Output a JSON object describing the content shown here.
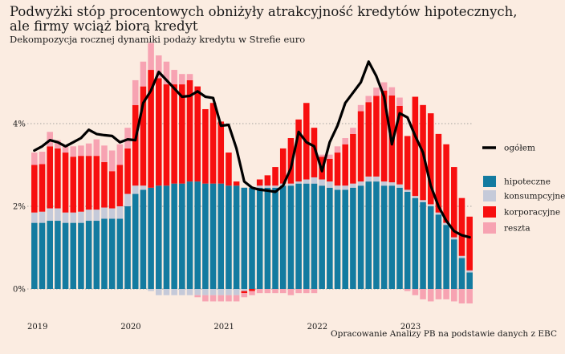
{
  "title_line1": "Podwyżki stóp procentowych obniżyły atrakcyjność kredytów hipotecznych,",
  "title_line2": "ale firmy wciąż biorą kredyt",
  "subtitle": "Dekompozycja rocznej dynamiki podaży kredytu w Strefie euro",
  "source": "Opracowanie Analizy PB na podstawie danych z EBC",
  "chart_data": {
    "type": "bar",
    "stacked": true,
    "unit": "%",
    "ylim": [
      -0.4,
      5.6
    ],
    "yticks": [
      0,
      2,
      4
    ],
    "ytick_labels": [
      "0%",
      "2%",
      "4%"
    ],
    "xtick_labels": [
      {
        "label": "2019",
        "index": 0
      },
      {
        "label": "2020",
        "index": 12
      },
      {
        "label": "2021",
        "index": 24
      },
      {
        "label": "2022",
        "index": 36
      },
      {
        "label": "2023",
        "index": 48
      }
    ],
    "grid": "horizontal dotted",
    "legend_position": "right",
    "colors": {
      "hipoteczne": "#137ba0",
      "konsumpcyjne": "#c5cad9",
      "korporacyjne": "#f70f0f",
      "reszta": "#f7a3b2",
      "ogolem": "#000000"
    },
    "series": [
      {
        "name": "hipoteczne",
        "key": "hipoteczne",
        "values": [
          1.6,
          1.6,
          1.65,
          1.65,
          1.6,
          1.6,
          1.6,
          1.65,
          1.65,
          1.7,
          1.7,
          1.7,
          2.0,
          2.3,
          2.4,
          2.45,
          2.5,
          2.5,
          2.55,
          2.55,
          2.6,
          2.6,
          2.55,
          2.55,
          2.55,
          2.5,
          2.5,
          2.45,
          2.45,
          2.45,
          2.45,
          2.45,
          2.5,
          2.5,
          2.55,
          2.55,
          2.55,
          2.5,
          2.45,
          2.4,
          2.4,
          2.45,
          2.5,
          2.6,
          2.6,
          2.5,
          2.5,
          2.45,
          2.35,
          2.2,
          2.1,
          2.0,
          1.8,
          1.55,
          1.2,
          0.75,
          0.4
        ]
      },
      {
        "name": "konsumpcyjne",
        "key": "konsumpcyjne",
        "values": [
          0.25,
          0.27,
          0.3,
          0.3,
          0.25,
          0.25,
          0.27,
          0.27,
          0.27,
          0.27,
          0.25,
          0.3,
          0.3,
          0.2,
          0.1,
          -0.05,
          -0.15,
          -0.15,
          -0.15,
          -0.15,
          -0.15,
          -0.15,
          -0.15,
          -0.15,
          -0.15,
          -0.15,
          -0.15,
          -0.05,
          0.0,
          0.05,
          0.05,
          0.05,
          0.05,
          0.05,
          0.05,
          0.1,
          0.15,
          0.15,
          0.15,
          0.1,
          0.1,
          0.1,
          0.1,
          0.12,
          0.12,
          0.1,
          0.08,
          0.08,
          0.05,
          0.05,
          0.05,
          0.05,
          0.05,
          0.05,
          0.05,
          0.05,
          0.05
        ]
      },
      {
        "name": "korporacyjne",
        "key": "korporacyjne",
        "values": [
          1.15,
          1.15,
          1.5,
          1.45,
          1.45,
          1.35,
          1.35,
          1.3,
          1.3,
          1.1,
          0.9,
          1.0,
          1.1,
          1.95,
          2.4,
          2.85,
          2.6,
          2.45,
          2.4,
          2.4,
          2.45,
          2.3,
          1.8,
          1.95,
          1.5,
          0.8,
          0.1,
          -0.05,
          -0.05,
          0.15,
          0.25,
          0.45,
          0.85,
          1.1,
          1.5,
          1.85,
          1.2,
          0.55,
          0.55,
          0.8,
          1.0,
          1.2,
          1.7,
          1.8,
          1.95,
          2.2,
          2.1,
          1.9,
          1.3,
          2.4,
          2.3,
          2.2,
          1.9,
          1.9,
          1.7,
          1.4,
          1.3
        ]
      },
      {
        "name": "reszta",
        "key": "reszta",
        "values": [
          0.3,
          0.3,
          0.35,
          0.2,
          0.15,
          0.25,
          0.25,
          0.3,
          0.4,
          0.4,
          0.5,
          0.5,
          0.5,
          0.6,
          0.6,
          0.65,
          0.55,
          0.55,
          0.35,
          0.25,
          0.15,
          -0.05,
          -0.15,
          -0.15,
          -0.15,
          -0.15,
          -0.15,
          -0.1,
          -0.1,
          -0.1,
          -0.1,
          -0.1,
          -0.1,
          -0.15,
          -0.1,
          -0.1,
          -0.1,
          0.05,
          0.1,
          0.15,
          0.15,
          0.15,
          0.15,
          0.15,
          0.2,
          0.2,
          0.2,
          0.2,
          -0.05,
          -0.15,
          -0.25,
          -0.3,
          -0.25,
          -0.25,
          -0.3,
          -0.35,
          -0.35
        ]
      },
      {
        "name": "ogółem",
        "key": "ogolem",
        "type": "line",
        "values": [
          3.35,
          3.45,
          3.6,
          3.55,
          3.45,
          3.55,
          3.65,
          3.85,
          3.75,
          3.72,
          3.7,
          3.55,
          3.62,
          3.6,
          4.5,
          4.8,
          5.25,
          5.05,
          4.85,
          4.65,
          4.67,
          4.78,
          4.65,
          4.62,
          3.95,
          3.97,
          3.4,
          2.6,
          2.45,
          2.4,
          2.38,
          2.35,
          2.5,
          2.92,
          3.8,
          3.55,
          3.45,
          2.85,
          3.55,
          3.95,
          4.5,
          4.75,
          5.0,
          5.5,
          5.15,
          4.65,
          3.5,
          4.25,
          4.15,
          3.7,
          3.3,
          2.5,
          2.0,
          1.65,
          1.4,
          1.3,
          1.25
        ]
      }
    ]
  }
}
